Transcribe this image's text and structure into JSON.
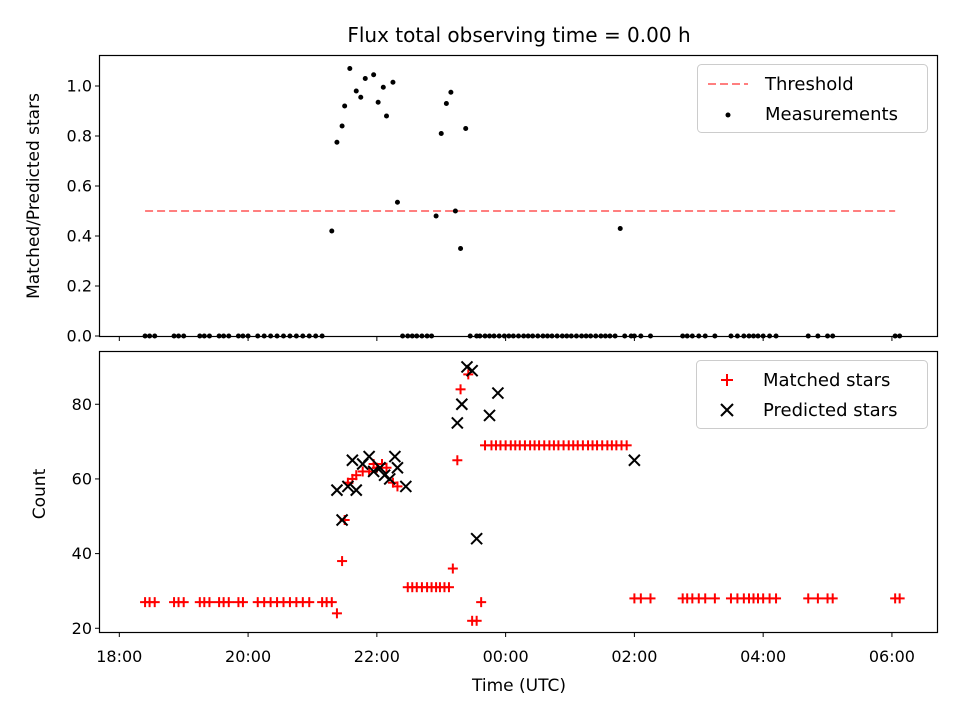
{
  "chart_data": [
    {
      "type": "scatter",
      "title": "Flux total observing time = 0.00 h",
      "xlabel": "",
      "ylabel": "Matched/Predicted stars",
      "x_unit": "hours (UTC, continuing past midnight)",
      "xlim": [
        17.7,
        30.7
      ],
      "ylim": [
        0.0,
        1.12
      ],
      "yticks": [
        "0.0",
        "0.2",
        "0.4",
        "0.6",
        "0.8",
        "1.0"
      ],
      "legend_position": "top-right",
      "series": [
        {
          "name": "Threshold",
          "style": "dashed-line",
          "color": "#ff7f7f",
          "x": [
            18.4,
            30.05
          ],
          "y": [
            0.5,
            0.5
          ]
        },
        {
          "name": "Measurements",
          "style": "dots",
          "color": "#000000",
          "x": [
            18.4,
            18.47,
            18.55,
            18.85,
            18.92,
            19.0,
            19.25,
            19.32,
            19.4,
            19.55,
            19.62,
            19.7,
            19.85,
            19.92,
            20.0,
            20.15,
            20.25,
            20.35,
            20.45,
            20.55,
            20.65,
            20.75,
            20.85,
            20.95,
            21.05,
            21.15,
            21.3,
            21.38,
            21.46,
            21.5,
            21.58,
            21.68,
            21.75,
            21.82,
            21.95,
            22.02,
            22.1,
            22.15,
            22.25,
            22.32,
            22.4,
            22.48,
            22.55,
            22.62,
            22.7,
            22.78,
            22.85,
            22.92,
            23.0,
            23.08,
            23.15,
            23.22,
            23.3,
            23.38,
            23.45,
            23.55,
            23.6,
            23.68,
            23.75,
            23.82,
            23.9,
            23.98,
            24.05,
            24.12,
            24.2,
            24.28,
            24.35,
            24.42,
            24.5,
            24.58,
            24.65,
            24.72,
            24.8,
            24.88,
            24.95,
            25.02,
            25.1,
            25.18,
            25.25,
            25.32,
            25.4,
            25.48,
            25.55,
            25.62,
            25.7,
            25.78,
            25.85,
            25.95,
            26.0,
            26.1,
            26.25,
            26.75,
            26.82,
            26.9,
            27.0,
            27.1,
            27.25,
            27.5,
            27.6,
            27.7,
            27.78,
            27.85,
            27.92,
            28.0,
            28.1,
            28.2,
            28.7,
            28.85,
            29.0,
            29.08,
            30.05,
            30.12
          ],
          "y": [
            0,
            0,
            0,
            0,
            0,
            0,
            0,
            0,
            0,
            0,
            0,
            0,
            0,
            0,
            0,
            0,
            0,
            0,
            0,
            0,
            0,
            0,
            0,
            0,
            0,
            0,
            0.42,
            0.775,
            0.84,
            0.92,
            1.07,
            0.98,
            0.955,
            1.03,
            1.045,
            0.935,
            0.995,
            0.88,
            1.015,
            0.535,
            0,
            0,
            0,
            0,
            0,
            0,
            0,
            0.48,
            0.81,
            0.93,
            0.975,
            0.5,
            0.35,
            0.83,
            0,
            0,
            0,
            0,
            0,
            0,
            0,
            0,
            0,
            0,
            0,
            0,
            0,
            0,
            0,
            0,
            0,
            0,
            0,
            0,
            0,
            0,
            0,
            0,
            0,
            0,
            0,
            0,
            0,
            0,
            0,
            0.43,
            0,
            0,
            0,
            0,
            0,
            0,
            0,
            0,
            0,
            0,
            0,
            0,
            0,
            0,
            0,
            0,
            0,
            0,
            0,
            0,
            0,
            0,
            0,
            0,
            0,
            0
          ],
          "_note": ""
        }
      ]
    },
    {
      "type": "scatter",
      "title": "",
      "xlabel": "Time (UTC)",
      "ylabel": "Count",
      "xlim": [
        17.7,
        30.7
      ],
      "ylim": [
        19,
        94
      ],
      "yticks": [
        "20",
        "40",
        "60",
        "80"
      ],
      "xticks": [
        "18:00",
        "20:00",
        "22:00",
        "00:00",
        "02:00",
        "04:00",
        "06:00"
      ],
      "legend_position": "top-right",
      "series": [
        {
          "name": "Matched stars",
          "marker": "plus",
          "color": "#ff0000",
          "x": [
            18.4,
            18.47,
            18.55,
            18.85,
            18.92,
            19.0,
            19.25,
            19.32,
            19.4,
            19.55,
            19.62,
            19.7,
            19.85,
            19.92,
            20.15,
            20.25,
            20.35,
            20.45,
            20.55,
            20.65,
            20.75,
            20.85,
            20.95,
            21.15,
            21.22,
            21.3,
            21.38,
            21.46,
            21.5,
            21.55,
            21.62,
            21.68,
            21.78,
            21.88,
            21.95,
            22.0,
            22.08,
            22.15,
            22.25,
            22.32,
            22.48,
            22.55,
            22.62,
            22.7,
            22.78,
            22.85,
            22.92,
            22.98,
            23.05,
            23.12,
            23.18,
            23.25,
            23.3,
            23.42,
            23.48,
            23.55,
            23.62,
            23.68,
            23.78,
            23.85,
            23.92,
            24.0,
            24.08,
            24.15,
            24.22,
            24.3,
            24.38,
            24.45,
            24.52,
            24.6,
            24.68,
            24.75,
            24.82,
            24.9,
            24.98,
            25.05,
            25.12,
            25.2,
            25.28,
            25.35,
            25.42,
            25.5,
            25.58,
            25.65,
            25.72,
            25.8,
            25.88,
            26.0,
            26.1,
            26.25,
            26.75,
            26.82,
            26.9,
            27.0,
            27.1,
            27.25,
            27.5,
            27.6,
            27.7,
            27.78,
            27.85,
            27.92,
            28.0,
            28.1,
            28.2,
            28.7,
            28.85,
            29.0,
            29.08,
            30.05,
            30.12
          ],
          "y": [
            27,
            27,
            27,
            27,
            27,
            27,
            27,
            27,
            27,
            27,
            27,
            27,
            27,
            27,
            27,
            27,
            27,
            27,
            27,
            27,
            27,
            27,
            27,
            27,
            27,
            27,
            24,
            38,
            49,
            59,
            60,
            61,
            62,
            62,
            64,
            63,
            64,
            63,
            59,
            58,
            31,
            31,
            31,
            31,
            31,
            31,
            31,
            31,
            31,
            31,
            36,
            65,
            84,
            88,
            22,
            22,
            27,
            69,
            69,
            69,
            69,
            69,
            69,
            69,
            69,
            69,
            69,
            69,
            69,
            69,
            69,
            69,
            69,
            69,
            69,
            69,
            69,
            69,
            69,
            69,
            69,
            69,
            69,
            69,
            69,
            69,
            69,
            28,
            28,
            28,
            28,
            28,
            28,
            28,
            28,
            28,
            28,
            28,
            28,
            28,
            28,
            28,
            28,
            28,
            28,
            28,
            28,
            28,
            28,
            28,
            28
          ],
          "_note": ""
        },
        {
          "name": "Predicted stars",
          "marker": "x",
          "color": "#000000",
          "x": [
            21.38,
            21.46,
            21.55,
            21.62,
            21.68,
            21.78,
            21.88,
            21.95,
            22.05,
            22.12,
            22.2,
            22.28,
            22.32,
            22.45,
            23.25,
            23.32,
            23.4,
            23.48,
            23.55,
            23.75,
            23.88,
            26.0
          ],
          "y": [
            57,
            49,
            58,
            65,
            57,
            64,
            66,
            62,
            63,
            61,
            60,
            66,
            63,
            58,
            75,
            80,
            90,
            89,
            44,
            77,
            83,
            65
          ]
        }
      ]
    }
  ]
}
